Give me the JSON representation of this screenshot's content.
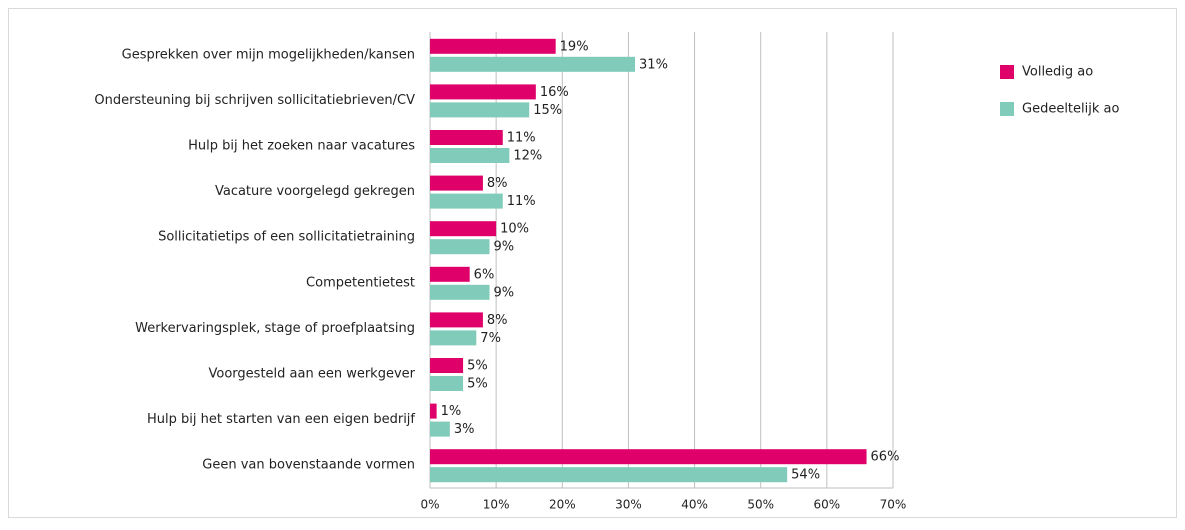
{
  "chart_data": {
    "type": "hbar",
    "categories": [
      "Gesprekken over mijn mogelijkheden/kansen",
      "Ondersteuning bij schrijven sollicitatiebrieven/CV",
      "Hulp bij het zoeken naar vacatures",
      "Vacature voorgelegd gekregen",
      "Sollicitatietips of een sollicitatietraining",
      "Competentietest",
      "Werkervaringsplek,  stage of proefplaatsing",
      "Voorgesteld aan een werkgever",
      "Hulp bij het starten van een eigen bedrijf",
      "Geen van bovenstaande vormen"
    ],
    "series": [
      {
        "name": "Volledig ao",
        "color": "#e0006a",
        "values": [
          19,
          16,
          11,
          8,
          10,
          6,
          8,
          5,
          1,
          66
        ],
        "value_labels": [
          "19%",
          "16%",
          "11%",
          "8%",
          "10%",
          "6%",
          "8%",
          "5%",
          "1%",
          "66%"
        ]
      },
      {
        "name": "Gedeeltelijk ao",
        "color": "#80cbb9",
        "values": [
          31,
          15,
          12,
          11,
          9,
          9,
          7,
          5,
          3,
          54
        ],
        "value_labels": [
          "31%",
          "15%",
          "12%",
          "11%",
          "9%",
          "9%",
          "7%",
          "5%",
          "3%",
          "54%"
        ]
      }
    ],
    "xlim": [
      0,
      70
    ],
    "xticks": [
      {
        "value": 0,
        "label": "0%"
      },
      {
        "value": 10,
        "label": "10%"
      },
      {
        "value": 20,
        "label": "20%"
      },
      {
        "value": 30,
        "label": "30%"
      },
      {
        "value": 40,
        "label": "40%"
      },
      {
        "value": 50,
        "label": "50%"
      },
      {
        "value": 60,
        "label": "60%"
      },
      {
        "value": 70,
        "label": "70%"
      }
    ],
    "grid": true,
    "legend": "right"
  }
}
